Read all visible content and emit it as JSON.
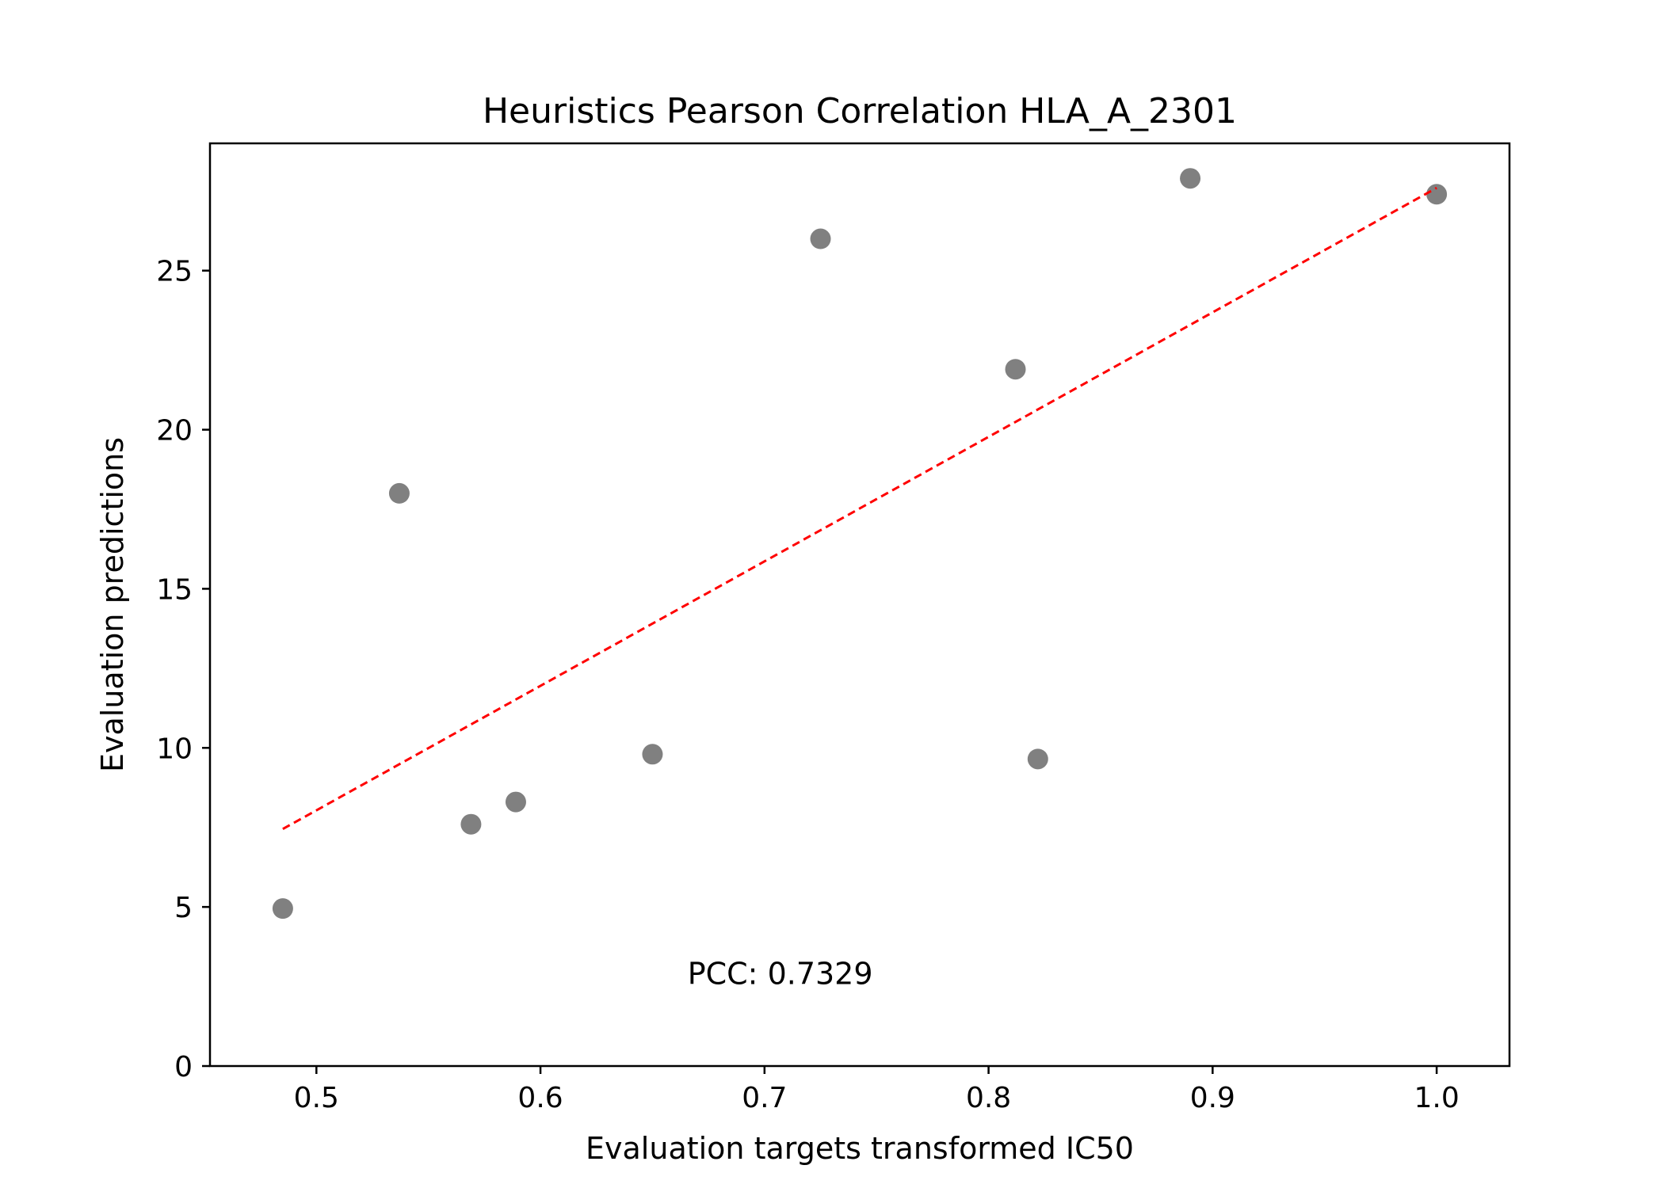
{
  "chart_data": {
    "type": "scatter",
    "title": "Heuristics Pearson Correlation HLA_A_2301",
    "xlabel": "Evaluation targets transformed IC50",
    "ylabel": "Evaluation predictions",
    "xlim": [
      0.4525,
      1.0325
    ],
    "ylim": [
      0,
      29
    ],
    "xticks": [
      {
        "value": 0.5,
        "label": "0.5"
      },
      {
        "value": 0.6,
        "label": "0.6"
      },
      {
        "value": 0.7,
        "label": "0.7"
      },
      {
        "value": 0.8,
        "label": "0.8"
      },
      {
        "value": 0.9,
        "label": "0.9"
      },
      {
        "value": 1.0,
        "label": "1.0"
      }
    ],
    "yticks": [
      {
        "value": 0,
        "label": "0"
      },
      {
        "value": 5,
        "label": "5"
      },
      {
        "value": 10,
        "label": "10"
      },
      {
        "value": 15,
        "label": "15"
      },
      {
        "value": 20,
        "label": "20"
      },
      {
        "value": 25,
        "label": "25"
      }
    ],
    "grid": false,
    "points": [
      {
        "x": 0.485,
        "y": 4.95
      },
      {
        "x": 0.537,
        "y": 18.0
      },
      {
        "x": 0.569,
        "y": 7.6
      },
      {
        "x": 0.589,
        "y": 8.3
      },
      {
        "x": 0.65,
        "y": 9.8
      },
      {
        "x": 0.725,
        "y": 26.0
      },
      {
        "x": 0.812,
        "y": 21.9
      },
      {
        "x": 0.822,
        "y": 9.65
      },
      {
        "x": 0.89,
        "y": 27.9
      },
      {
        "x": 1.0,
        "y": 27.4
      }
    ],
    "point_color": "#808080",
    "fit_line": {
      "x": [
        0.485,
        1.0
      ],
      "y": [
        7.45,
        27.6
      ],
      "color": "#ff0000",
      "style": "dashed"
    },
    "annotation": {
      "text": "PCC: 0.7329",
      "x": 0.707,
      "y": 2.9
    }
  }
}
